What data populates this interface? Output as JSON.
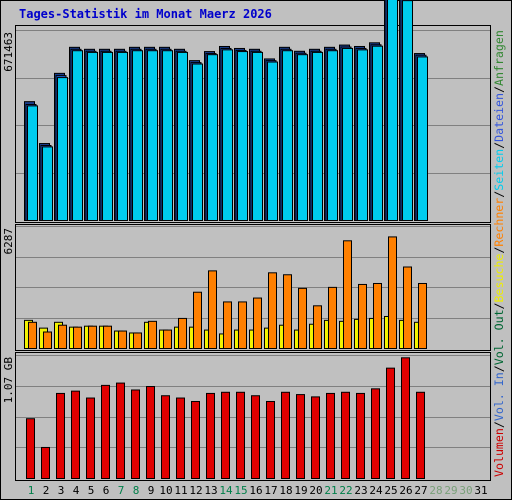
{
  "title": "Tages-Statistik im Monat Maerz 2026",
  "right_legend": [
    {
      "text": "Volumen",
      "color": "#cc0000"
    },
    {
      "text": "/",
      "color": "#000000"
    },
    {
      "text": "Vol. In",
      "color": "#3366cc"
    },
    {
      "text": "/",
      "color": "#000000"
    },
    {
      "text": "Vol. Out",
      "color": "#006633"
    },
    {
      "text": "/",
      "color": "#000000"
    },
    {
      "text": "Besuche",
      "color": "#eeee00"
    },
    {
      "text": "/",
      "color": "#000000"
    },
    {
      "text": "Rechner",
      "color": "#ff8000"
    },
    {
      "text": "/",
      "color": "#000000"
    },
    {
      "text": "Seiten",
      "color": "#00ccee"
    },
    {
      "text": "/",
      "color": "#000000"
    },
    {
      "text": "Dateien",
      "color": "#3355dd"
    },
    {
      "text": "/",
      "color": "#000000"
    },
    {
      "text": "Anfragen",
      "color": "#338833"
    }
  ],
  "colors": {
    "background": "#c0c0c0",
    "title": "#0000cc",
    "hits": "#1a3f8f",
    "files": "#1f5fcf",
    "pages": "#00ccee",
    "visits": "#f2f200",
    "sites": "#ff8000",
    "volume": "#e00000",
    "weekend_label": "#00804a",
    "day_label": "#000000",
    "future_label": "#7aa07a"
  },
  "chart_data": [
    {
      "type": "bar",
      "panel": "top",
      "ylabel": "671463",
      "ymax": 671463,
      "categories": [
        "1",
        "2",
        "3",
        "4",
        "5",
        "6",
        "7",
        "8",
        "9",
        "10",
        "11",
        "12",
        "13",
        "14",
        "15",
        "16",
        "17",
        "18",
        "19",
        "20",
        "21",
        "22",
        "23",
        "24",
        "25",
        "26",
        "27",
        "28",
        "29",
        "30",
        "31"
      ],
      "series": [
        {
          "name": "Anfragen",
          "values": [
            420000,
            272000,
            520000,
            612000,
            605000,
            605000,
            605000,
            612000,
            612000,
            612000,
            605000,
            565000,
            597000,
            615000,
            608000,
            605000,
            571000,
            612000,
            598000,
            605000,
            612000,
            620000,
            615000,
            628000,
            800000,
            790000,
            590000,
            0,
            0,
            0,
            0
          ]
        },
        {
          "name": "Dateien",
          "values": [
            410000,
            265000,
            512000,
            605000,
            598000,
            598000,
            598000,
            605000,
            605000,
            605000,
            598000,
            558000,
            590000,
            608000,
            601000,
            598000,
            565000,
            605000,
            591000,
            598000,
            605000,
            613000,
            608000,
            621000,
            793000,
            783000,
            584000,
            0,
            0,
            0,
            0
          ]
        },
        {
          "name": "Seiten",
          "values": [
            405000,
            260000,
            505000,
            600000,
            594000,
            594000,
            594000,
            600000,
            600000,
            600000,
            594000,
            553000,
            586000,
            603000,
            597000,
            594000,
            560000,
            600000,
            586000,
            594000,
            600000,
            608000,
            603000,
            616000,
            787000,
            777000,
            578000,
            0,
            0,
            0,
            0
          ]
        }
      ]
    },
    {
      "type": "bar",
      "panel": "middle",
      "ylabel": "6287",
      "ymax": 6287,
      "categories": [
        "1",
        "2",
        "3",
        "4",
        "5",
        "6",
        "7",
        "8",
        "9",
        "10",
        "11",
        "12",
        "13",
        "14",
        "15",
        "16",
        "17",
        "18",
        "19",
        "20",
        "21",
        "22",
        "23",
        "24",
        "25",
        "26",
        "27",
        "28",
        "29",
        "30",
        "31"
      ],
      "series": [
        {
          "name": "Besuche",
          "values": [
            1450,
            1050,
            1350,
            1100,
            1150,
            1150,
            900,
            800,
            1350,
            950,
            1100,
            1100,
            950,
            750,
            950,
            950,
            1050,
            1200,
            950,
            1250,
            1450,
            1400,
            1500,
            1550,
            1650,
            1450,
            1350,
            0,
            0,
            0,
            0
          ]
        },
        {
          "name": "Rechner",
          "values": [
            1350,
            850,
            1200,
            1100,
            1150,
            1150,
            900,
            800,
            1400,
            950,
            1550,
            2900,
            4000,
            2400,
            2400,
            2600,
            3900,
            3800,
            3100,
            2200,
            3150,
            5550,
            3300,
            3350,
            5750,
            4200,
            3350,
            0,
            0,
            0,
            0
          ]
        }
      ]
    },
    {
      "type": "bar",
      "panel": "bottom",
      "ylabel": "1.07 GB",
      "ymax": 1.07,
      "unit": "GB",
      "categories": [
        "1",
        "2",
        "3",
        "4",
        "5",
        "6",
        "7",
        "8",
        "9",
        "10",
        "11",
        "12",
        "13",
        "14",
        "15",
        "16",
        "17",
        "18",
        "19",
        "20",
        "21",
        "22",
        "23",
        "24",
        "25",
        "26",
        "27",
        "28",
        "29",
        "30",
        "31"
      ],
      "series": [
        {
          "name": "Volumen",
          "values": [
            0.52,
            0.27,
            0.74,
            0.76,
            0.7,
            0.81,
            0.83,
            0.77,
            0.8,
            0.72,
            0.7,
            0.67,
            0.74,
            0.75,
            0.75,
            0.72,
            0.67,
            0.75,
            0.73,
            0.71,
            0.74,
            0.75,
            0.74,
            0.78,
            0.96,
            1.05,
            0.75,
            0,
            0,
            0,
            0
          ]
        }
      ]
    }
  ],
  "day_labels": [
    {
      "text": "1",
      "kind": "weekend"
    },
    {
      "text": "2",
      "kind": "day"
    },
    {
      "text": "3",
      "kind": "day"
    },
    {
      "text": "4",
      "kind": "day"
    },
    {
      "text": "5",
      "kind": "day"
    },
    {
      "text": "6",
      "kind": "day"
    },
    {
      "text": "7",
      "kind": "weekend"
    },
    {
      "text": "8",
      "kind": "weekend"
    },
    {
      "text": "9",
      "kind": "day"
    },
    {
      "text": "10",
      "kind": "day"
    },
    {
      "text": "11",
      "kind": "day"
    },
    {
      "text": "12",
      "kind": "day"
    },
    {
      "text": "13",
      "kind": "day"
    },
    {
      "text": "14",
      "kind": "weekend"
    },
    {
      "text": "15",
      "kind": "weekend"
    },
    {
      "text": "16",
      "kind": "day"
    },
    {
      "text": "17",
      "kind": "day"
    },
    {
      "text": "18",
      "kind": "day"
    },
    {
      "text": "19",
      "kind": "day"
    },
    {
      "text": "20",
      "kind": "day"
    },
    {
      "text": "21",
      "kind": "weekend"
    },
    {
      "text": "22",
      "kind": "weekend"
    },
    {
      "text": "23",
      "kind": "day"
    },
    {
      "text": "24",
      "kind": "day"
    },
    {
      "text": "25",
      "kind": "day"
    },
    {
      "text": "26",
      "kind": "day"
    },
    {
      "text": "27",
      "kind": "day"
    },
    {
      "text": "28",
      "kind": "future"
    },
    {
      "text": "29",
      "kind": "future"
    },
    {
      "text": "30",
      "kind": "future"
    },
    {
      "text": "31",
      "kind": "day"
    }
  ]
}
